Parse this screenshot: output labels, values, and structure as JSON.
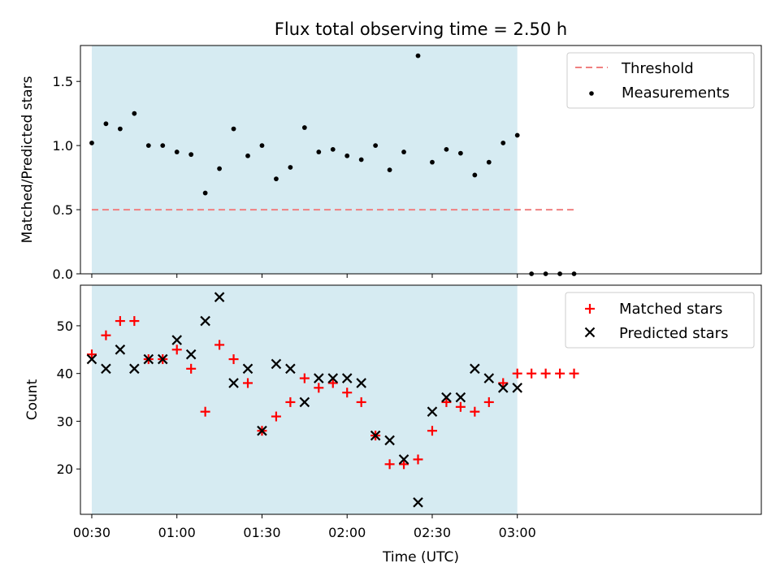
{
  "chart_data": [
    {
      "type": "scatter",
      "title": "Flux total observing time = 2.50 h",
      "xlabel": "",
      "ylabel": "Matched/Predicted stars",
      "ylim": [
        0,
        1.78
      ],
      "yticks": [
        0.0,
        0.5,
        1.0,
        1.5
      ],
      "ytick_labels": [
        "0.0",
        "0.5",
        "1.0",
        "1.5"
      ],
      "xlim_minutes": [
        26,
        266
      ],
      "shaded_span": [
        "00:30",
        "03:00"
      ],
      "shaded_color": "#add8e6",
      "legend": "top-right",
      "threshold": {
        "name": "Threshold",
        "value": 0.5,
        "x_start": "00:30",
        "x_end": "03:20",
        "color": "#f08080"
      },
      "series": [
        {
          "name": "Measurements",
          "marker": "dot",
          "color": "#000000",
          "x": [
            "00:30",
            "00:35",
            "00:40",
            "00:45",
            "00:50",
            "00:55",
            "01:00",
            "01:05",
            "01:10",
            "01:15",
            "01:20",
            "01:25",
            "01:30",
            "01:35",
            "01:40",
            "01:45",
            "01:50",
            "01:55",
            "02:00",
            "02:05",
            "02:10",
            "02:15",
            "02:20",
            "02:25",
            "02:30",
            "02:35",
            "02:40",
            "02:45",
            "02:50",
            "02:55",
            "03:00",
            "03:05",
            "03:10",
            "03:15",
            "03:20"
          ],
          "y": [
            1.02,
            1.17,
            1.13,
            1.25,
            1.0,
            1.0,
            0.95,
            0.93,
            0.63,
            0.82,
            1.13,
            0.92,
            1.0,
            0.74,
            0.83,
            1.14,
            0.95,
            0.97,
            0.92,
            0.89,
            1.0,
            0.81,
            0.95,
            1.7,
            0.87,
            0.97,
            0.94,
            0.77,
            0.87,
            1.02,
            1.08,
            0.0,
            0.0,
            0.0,
            0.0
          ]
        }
      ]
    },
    {
      "type": "scatter",
      "title": "",
      "xlabel": "Time (UTC)",
      "ylabel": "Count",
      "ylim": [
        10.5,
        58.5
      ],
      "yticks": [
        20,
        30,
        40,
        50
      ],
      "ytick_labels": [
        "20",
        "30",
        "40",
        "50"
      ],
      "xlim_minutes": [
        26,
        266
      ],
      "xticks": [
        "00:30",
        "01:00",
        "01:30",
        "02:00",
        "02:30",
        "03:00"
      ],
      "shaded_span": [
        "00:30",
        "03:00"
      ],
      "shaded_color": "#add8e6",
      "legend": "top-right",
      "series": [
        {
          "name": "Matched stars",
          "marker": "plus",
          "color": "#ff0000",
          "x": [
            "00:30",
            "00:35",
            "00:40",
            "00:45",
            "00:50",
            "00:55",
            "01:00",
            "01:05",
            "01:10",
            "01:15",
            "01:20",
            "01:25",
            "01:30",
            "01:35",
            "01:40",
            "01:45",
            "01:50",
            "01:55",
            "02:00",
            "02:05",
            "02:10",
            "02:15",
            "02:20",
            "02:25",
            "02:30",
            "02:35",
            "02:40",
            "02:45",
            "02:50",
            "02:55",
            "03:00",
            "03:05",
            "03:10",
            "03:15",
            "03:20"
          ],
          "y": [
            44,
            48,
            51,
            51,
            43,
            43,
            45,
            41,
            32,
            46,
            43,
            38,
            28,
            31,
            34,
            39,
            37,
            38,
            36,
            34,
            27,
            21,
            21,
            22,
            28,
            34,
            33,
            32,
            34,
            38,
            40,
            40,
            40,
            40,
            40
          ]
        },
        {
          "name": "Predicted stars",
          "marker": "x",
          "color": "#000000",
          "x": [
            "00:30",
            "00:35",
            "00:40",
            "00:45",
            "00:50",
            "00:55",
            "01:00",
            "01:05",
            "01:10",
            "01:15",
            "01:20",
            "01:25",
            "01:30",
            "01:35",
            "01:40",
            "01:45",
            "01:50",
            "01:55",
            "02:00",
            "02:05",
            "02:10",
            "02:15",
            "02:20",
            "02:25",
            "02:30",
            "02:35",
            "02:40",
            "02:45",
            "02:50",
            "02:55",
            "03:00"
          ],
          "y": [
            43,
            41,
            45,
            41,
            43,
            43,
            47,
            44,
            51,
            56,
            38,
            41,
            28,
            42,
            41,
            34,
            39,
            39,
            39,
            38,
            27,
            26,
            22,
            13,
            32,
            35,
            35,
            41,
            39,
            37,
            37
          ]
        }
      ]
    }
  ]
}
